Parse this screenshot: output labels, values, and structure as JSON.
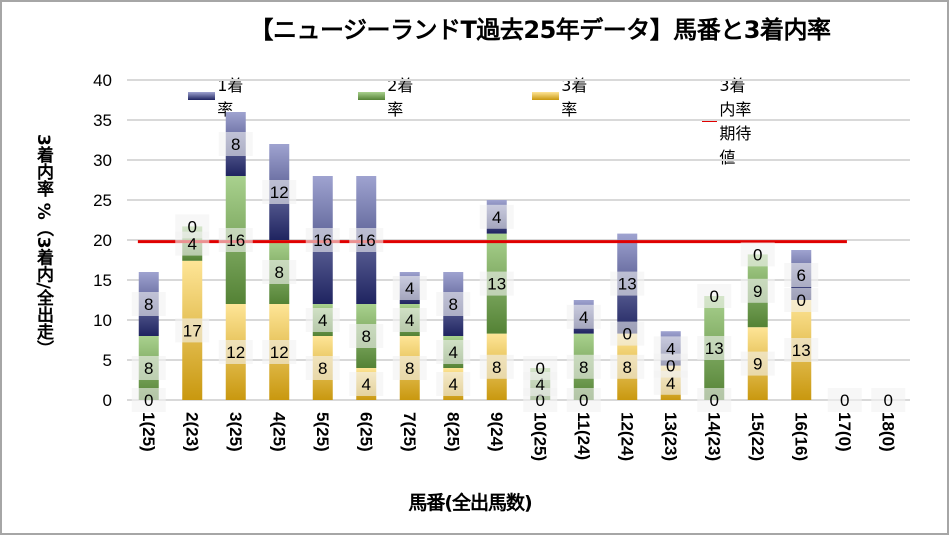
{
  "chart_data": {
    "type": "bar",
    "stacked": true,
    "title": "【ニュージーランドT過去25年データ】馬番と3着内率",
    "xlabel": "馬番(全出馬数)",
    "ylabel": "3着内率 %（3着内/全出走）",
    "ylim": [
      0,
      40
    ],
    "yticks": [
      0,
      5,
      10,
      15,
      20,
      25,
      30,
      35,
      40
    ],
    "grid": true,
    "legend_position": "top",
    "categories": [
      "1(25)",
      "2(23)",
      "3(25)",
      "4(25)",
      "5(25)",
      "6(25)",
      "7(25)",
      "8(25)",
      "9(24)",
      "10(25)",
      "11(24)",
      "12(24)",
      "13(23)",
      "14(23)",
      "15(22)",
      "16(16)",
      "17(0)",
      "18(0)"
    ],
    "series": [
      {
        "name": "3着率",
        "color": "#c9980f",
        "color_light": "#fee597",
        "values": [
          0,
          17.4,
          12,
          12,
          8,
          4,
          8,
          4,
          8.3,
          0,
          0,
          8.3,
          4.3,
          0,
          9.1,
          12.5,
          0,
          0
        ],
        "labels": [
          "0",
          "17",
          "12",
          "12",
          "8",
          "4",
          "8",
          "4",
          "8",
          "0",
          "0",
          "8",
          "4",
          "0",
          "9",
          "13",
          "0",
          "0"
        ]
      },
      {
        "name": "2着率",
        "color": "#548235",
        "color_light": "#a9d18e",
        "values": [
          8,
          4.3,
          16,
          8,
          4,
          8,
          4,
          4,
          12.5,
          4,
          8.3,
          0,
          0,
          13,
          9.1,
          0,
          0,
          0
        ],
        "labels": [
          "8",
          "4",
          "16",
          "8",
          "4",
          "8",
          "4",
          "4",
          "13",
          "4",
          "8",
          "0",
          "0",
          "13",
          "9",
          "0",
          "",
          ""
        ]
      },
      {
        "name": "1着率",
        "color": "#1f2460",
        "color_light": "#9fa3d0",
        "values": [
          8,
          0,
          8,
          12,
          16,
          16,
          4,
          8,
          4.2,
          0,
          4.2,
          12.5,
          4.3,
          0,
          0,
          6.25,
          0,
          0
        ],
        "labels": [
          "8",
          "0",
          "8",
          "12",
          "16",
          "16",
          "4",
          "8",
          "4",
          "0",
          "4",
          "13",
          "4",
          "0",
          "0",
          "6",
          "",
          ""
        ]
      }
    ],
    "reference_line": {
      "name": "3着内率期待値",
      "value": 19.8,
      "color": "#e00000"
    }
  }
}
